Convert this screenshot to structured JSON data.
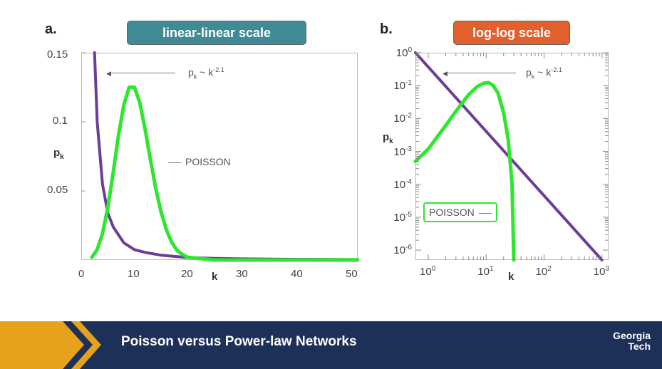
{
  "slide": {
    "title": "Poisson versus Power-law Networks",
    "logo_line1": "Georgia",
    "logo_line2": "Tech"
  },
  "colors": {
    "poisson": "#2ee62e",
    "power_law": "#6a3d98",
    "badge_a": "#3f8a94",
    "badge_b": "#e0612e",
    "bar": "#1d3058",
    "chevron": "#e6a21a"
  },
  "chart_data": [
    {
      "panel": "a.",
      "badge": "linear-linear scale",
      "type": "line",
      "xlabel": "k",
      "ylabel": "p",
      "ylabel_sub": "k",
      "xlim": [
        0,
        52
      ],
      "ylim": [
        0,
        0.15
      ],
      "x_ticks": [
        "0",
        "10",
        "20",
        "30",
        "40",
        "50"
      ],
      "y_ticks": [
        "0.15",
        "0.1",
        "0.05"
      ],
      "series": [
        {
          "key": "power_law",
          "x": [
            2.5,
            3,
            4,
            5,
            6,
            8,
            10,
            12,
            15,
            20,
            25,
            30,
            40,
            52
          ],
          "y": [
            0.155,
            0.1,
            0.055,
            0.034,
            0.024,
            0.0125,
            0.0075,
            0.0055,
            0.0035,
            0.0018,
            0.0012,
            0.0008,
            0.0005,
            0.0003
          ]
        },
        {
          "key": "poisson",
          "x": [
            2,
            3,
            4,
            5,
            6,
            7,
            8,
            9,
            10,
            11,
            12,
            13,
            14,
            15,
            16,
            17,
            18,
            19,
            20,
            25,
            52
          ],
          "y": [
            0.002,
            0.0075,
            0.019,
            0.038,
            0.063,
            0.09,
            0.112,
            0.125,
            0.125,
            0.114,
            0.095,
            0.073,
            0.052,
            0.035,
            0.022,
            0.013,
            0.007,
            0.004,
            0.002,
            0.0,
            0.0
          ]
        }
      ],
      "annotations": {
        "power_law": "p",
        "power_law_sub": "k",
        "power_law_rest": " ~ k",
        "power_law_exp": "-2.1",
        "poisson": "POISSON"
      }
    },
    {
      "panel": "b.",
      "badge": "log-log scale",
      "type": "line",
      "log_x": true,
      "log_y": true,
      "xlabel": "k",
      "ylabel": "p",
      "ylabel_sub": "k",
      "xlim": [
        0.6,
        1300
      ],
      "ylim": [
        5e-07,
        1.0
      ],
      "x_ticks": [
        {
          "base": "10",
          "exp": "0"
        },
        {
          "base": "10",
          "exp": "1"
        },
        {
          "base": "10",
          "exp": "2"
        },
        {
          "base": "10",
          "exp": "3"
        }
      ],
      "y_ticks": [
        {
          "base": "10",
          "exp": "0"
        },
        {
          "base": "10",
          "exp": "-1"
        },
        {
          "base": "10",
          "exp": "-2"
        },
        {
          "base": "10",
          "exp": "-3"
        },
        {
          "base": "10",
          "exp": "-4"
        },
        {
          "base": "10",
          "exp": "-5"
        },
        {
          "base": "10",
          "exp": "-6"
        }
      ],
      "series": [
        {
          "key": "power_law",
          "x": [
            0.6,
            1000
          ],
          "y": [
            1.0,
            5e-07
          ]
        },
        {
          "key": "poisson",
          "x": [
            0.6,
            1,
            2,
            3,
            5,
            7,
            9,
            11,
            13,
            16,
            20,
            24,
            28,
            30
          ],
          "y": [
            0.0005,
            0.00119,
            0.0061,
            0.0167,
            0.0533,
            0.0933,
            0.1176,
            0.1229,
            0.1042,
            0.0601,
            0.0152,
            0.0023,
            0.0001,
            5e-07
          ]
        }
      ],
      "annotations": {
        "power_law": "p",
        "power_law_sub": "k",
        "power_law_rest": " ~ k",
        "power_law_exp": "-2.1",
        "poisson": "POISSON"
      }
    }
  ]
}
